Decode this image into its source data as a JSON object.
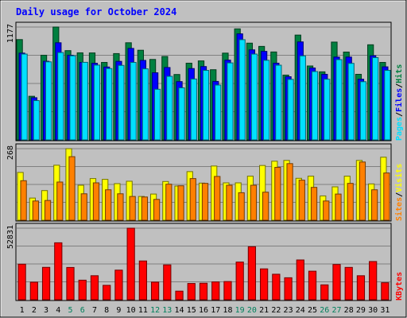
{
  "chart_data": {
    "type": "bar",
    "title": "Daily usage for October 2024",
    "categories": [
      "1",
      "2",
      "3",
      "4",
      "5",
      "6",
      "7",
      "8",
      "9",
      "10",
      "11",
      "12",
      "13",
      "14",
      "15",
      "16",
      "17",
      "18",
      "19",
      "20",
      "21",
      "22",
      "23",
      "24",
      "25",
      "26",
      "27",
      "28",
      "29",
      "30",
      "31"
    ],
    "weekend_days": [
      "5",
      "6",
      "12",
      "13",
      "19",
      "20",
      "26",
      "27"
    ],
    "panels": [
      {
        "id": "hits-files-pages",
        "max_label": "1177",
        "ymax": 1177,
        "series": [
          {
            "name": "Hits",
            "color": "#008040",
            "values": [
              1046,
              455,
              883,
              1177,
              931,
              908,
              907,
              808,
              900,
              1013,
              935,
              839,
              870,
              682,
              800,
              824,
              732,
              905,
              1158,
              1009,
              975,
              917,
              676,
              1093,
              771,
              710,
              1020,
              916,
              684,
              992,
              808
            ]
          },
          {
            "name": "Files",
            "color": "#0000ff",
            "values": [
              905,
              440,
              820,
              1013,
              883,
              808,
              799,
              760,
              819,
              954,
              829,
              700,
              755,
              608,
              744,
              765,
              610,
              832,
              1106,
              939,
              923,
              800,
              659,
              1022,
              750,
              684,
              864,
              864,
              633,
              878,
              762
            ]
          },
          {
            "name": "Pages",
            "color": "#00e0ff",
            "values": [
              895,
              410,
              814,
              911,
              877,
              809,
              780,
              744,
              777,
              808,
              741,
              528,
              663,
              543,
              635,
              725,
              572,
              803,
              1045,
              895,
              830,
              779,
              631,
              876,
              713,
              633,
              837,
              798,
              607,
              858,
              725
            ]
          }
        ],
        "legend_labels": [
          "Pages",
          "/",
          "Files",
          "/",
          "Hits"
        ]
      },
      {
        "id": "visits-sites",
        "max_label": "268",
        "ymax": 268,
        "series": [
          {
            "name": "Visits",
            "color": "#ffff00",
            "values": [
              179,
              83,
              111,
              206,
              268,
              131,
              156,
              153,
              137,
              146,
              89,
              98,
              145,
              128,
              182,
              139,
              203,
              140,
              140,
              165,
              205,
              221,
              224,
              157,
              165,
              91,
              125,
              165,
              224,
              136,
              236
            ]
          },
          {
            "name": "Sites",
            "color": "#ff8000",
            "values": [
              148,
              72,
              74,
              143,
              238,
              99,
              140,
              114,
              99,
              89,
              87,
              78,
              135,
              129,
              156,
              138,
              164,
              131,
              103,
              131,
              105,
              198,
              212,
              150,
              123,
              72,
              98,
              138,
              218,
              114,
              177
            ]
          }
        ],
        "legend_labels": [
          "Sites",
          "/",
          "Visits"
        ]
      },
      {
        "id": "kbytes",
        "max_label": "52831",
        "ymax": 52831,
        "series": [
          {
            "name": "KBytes",
            "color": "#ff0000",
            "values": [
              26240,
              12937,
              23910,
              42044,
              23819,
              14432,
              17722,
              10624,
              21846,
              52831,
              28614,
              12992,
              25715,
              6340,
              11990,
              12201,
              13148,
              13418,
              27812,
              39129,
              22779,
              18822,
              16226,
              29364,
              21066,
              10984,
              26014,
              23878,
              17718,
              28214,
              12542
            ]
          }
        ],
        "legend_labels": [
          "KBytes"
        ]
      }
    ]
  },
  "colors": {
    "background": "#ffffff",
    "frame": "#c0c0c0",
    "panel": "#c0c0c0",
    "title": "#0000ff",
    "weekday_label": "#000000",
    "weekend_label": "#00805c",
    "gridline": "#808080",
    "divider": "#000000"
  }
}
